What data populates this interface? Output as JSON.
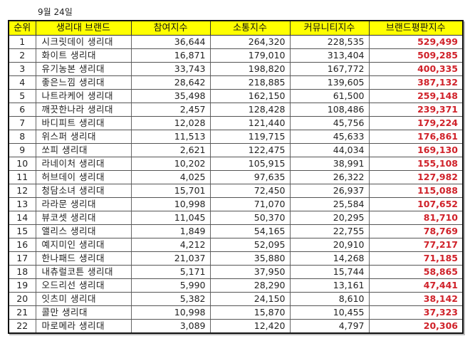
{
  "date_label": "9월 24일",
  "table": {
    "headers": [
      "순위",
      "생리대 브랜드",
      "참여지수",
      "소통지수",
      "커뮤니티지수",
      "브랜드평판지수"
    ],
    "rows": [
      {
        "rank": "1",
        "brand": "시크릿데이 생리대",
        "participation": "36,644",
        "communication": "264,320",
        "community": "228,535",
        "reputation": "529,499"
      },
      {
        "rank": "2",
        "brand": "화이트 생리대",
        "participation": "16,871",
        "communication": "179,010",
        "community": "313,404",
        "reputation": "509,285"
      },
      {
        "rank": "3",
        "brand": "유기농본 생리대",
        "participation": "33,743",
        "communication": "198,820",
        "community": "167,772",
        "reputation": "400,335"
      },
      {
        "rank": "4",
        "brand": "좋은느낌 생리대",
        "participation": "28,642",
        "communication": "218,885",
        "community": "139,605",
        "reputation": "387,132"
      },
      {
        "rank": "5",
        "brand": "나트라케어 생리대",
        "participation": "35,498",
        "communication": "162,150",
        "community": "61,500",
        "reputation": "259,148"
      },
      {
        "rank": "6",
        "brand": "깨끗한나라 생리대",
        "participation": "2,457",
        "communication": "128,428",
        "community": "108,486",
        "reputation": "239,371"
      },
      {
        "rank": "7",
        "brand": "바디피트 생리대",
        "participation": "12,028",
        "communication": "121,440",
        "community": "45,756",
        "reputation": "179,224"
      },
      {
        "rank": "8",
        "brand": "위스퍼 생리대",
        "participation": "11,513",
        "communication": "119,715",
        "community": "45,633",
        "reputation": "176,861"
      },
      {
        "rank": "9",
        "brand": "쏘피 생리대",
        "participation": "2,621",
        "communication": "122,475",
        "community": "44,034",
        "reputation": "169,130"
      },
      {
        "rank": "10",
        "brand": "라네이처 생리대",
        "participation": "10,202",
        "communication": "105,915",
        "community": "38,991",
        "reputation": "155,108"
      },
      {
        "rank": "11",
        "brand": "허브데이 생리대",
        "participation": "4,025",
        "communication": "97,635",
        "community": "26,322",
        "reputation": "127,982"
      },
      {
        "rank": "12",
        "brand": "청담소녀 생리대",
        "participation": "15,701",
        "communication": "72,450",
        "community": "26,937",
        "reputation": "115,088"
      },
      {
        "rank": "13",
        "brand": "라라문 생리대",
        "participation": "10,998",
        "communication": "71,070",
        "community": "25,584",
        "reputation": "107,652"
      },
      {
        "rank": "14",
        "brand": "뷰코셋 생리대",
        "participation": "11,045",
        "communication": "50,370",
        "community": "20,295",
        "reputation": "81,710"
      },
      {
        "rank": "15",
        "brand": "앨리스 생리대",
        "participation": "1,849",
        "communication": "54,165",
        "community": "22,755",
        "reputation": "78,769"
      },
      {
        "rank": "16",
        "brand": "예지미인 생리대",
        "participation": "4,212",
        "communication": "52,095",
        "community": "20,910",
        "reputation": "77,217"
      },
      {
        "rank": "17",
        "brand": "한나패드 생리대",
        "participation": "21,037",
        "communication": "35,880",
        "community": "14,268",
        "reputation": "71,185"
      },
      {
        "rank": "18",
        "brand": "내츄럴코튼 생리대",
        "participation": "5,171",
        "communication": "37,950",
        "community": "15,744",
        "reputation": "58,865"
      },
      {
        "rank": "19",
        "brand": "오드리선 생리대",
        "participation": "5,990",
        "communication": "28,290",
        "community": "13,161",
        "reputation": "47,441"
      },
      {
        "rank": "20",
        "brand": "잇츠미 생리대",
        "participation": "5,382",
        "communication": "24,150",
        "community": "8,610",
        "reputation": "38,142"
      },
      {
        "rank": "21",
        "brand": "콜만 생리대",
        "participation": "10,998",
        "communication": "15,870",
        "community": "10,455",
        "reputation": "37,323"
      },
      {
        "rank": "22",
        "brand": "마로메라 생리대",
        "participation": "3,089",
        "communication": "12,420",
        "community": "4,797",
        "reputation": "20,306"
      }
    ]
  },
  "colors": {
    "header_bg": "#ffff00",
    "reputation_text": "#d0222a"
  }
}
